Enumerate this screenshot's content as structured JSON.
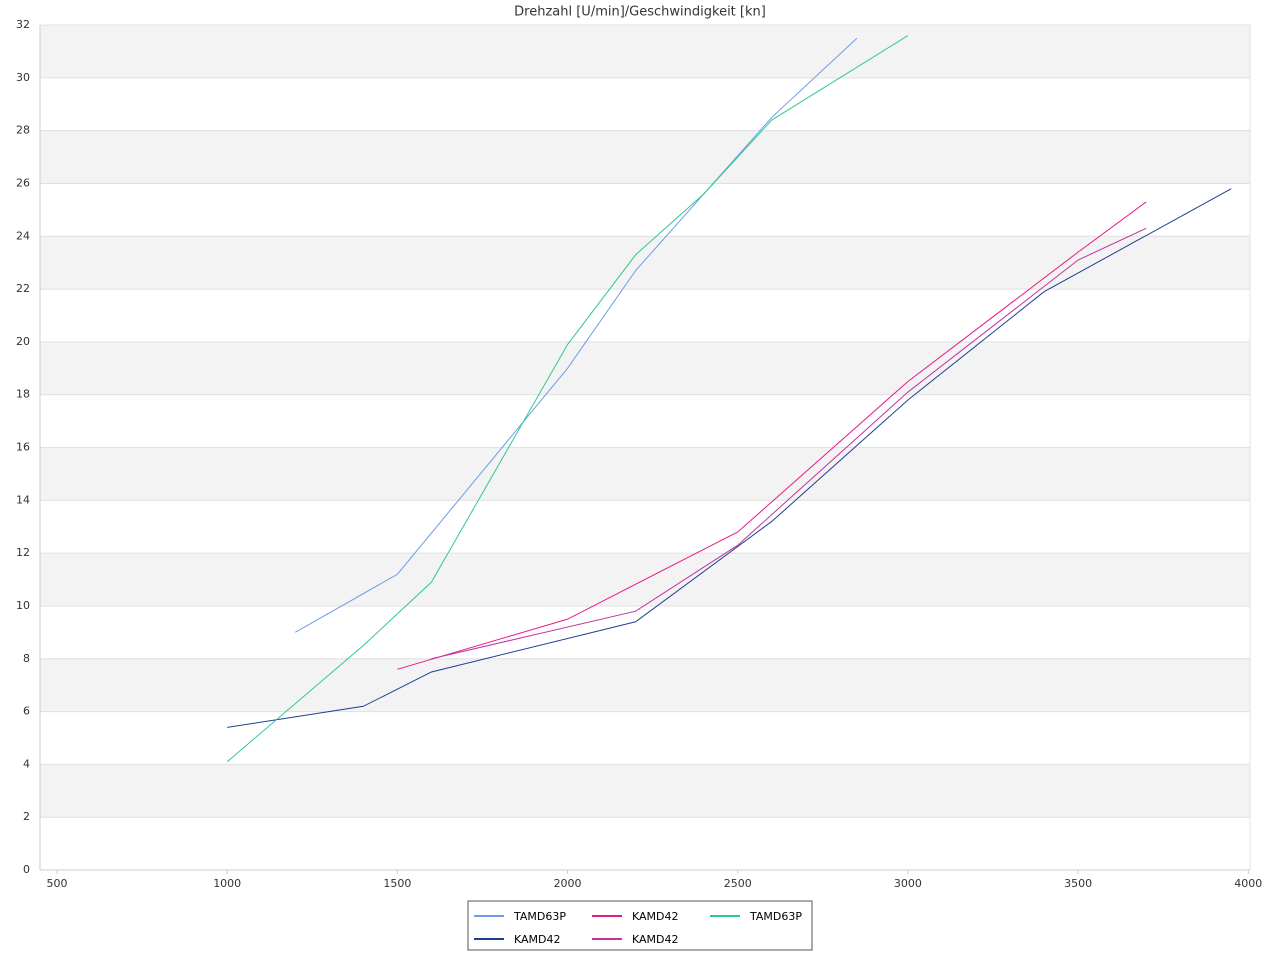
{
  "chart_data": {
    "type": "line",
    "title": "Drehzahl [U/min]/Geschwindigkeit [kn]",
    "series": [
      {
        "name": "TAMD63P",
        "color": "#6f9be8",
        "x": [
          1200,
          1500,
          2000,
          2200,
          2600,
          2850
        ],
        "values": [
          9,
          11.2,
          19,
          22.7,
          28.5,
          31.5
        ]
      },
      {
        "name": "KAMD42",
        "color": "#1f3f8f",
        "x": [
          1000,
          1400,
          1600,
          2200,
          2600,
          3000,
          3400,
          3950
        ],
        "values": [
          5.4,
          6.2,
          7.5,
          9.4,
          13.2,
          17.8,
          21.9,
          25.8
        ]
      },
      {
        "name": "KAMD42",
        "color": "#e8198b",
        "x": [
          1500,
          2000,
          2500,
          3000,
          3500,
          3700
        ],
        "values": [
          7.6,
          9.5,
          12.8,
          18.5,
          23.4,
          25.3
        ]
      },
      {
        "name": "KAMD42",
        "color": "#c0339e",
        "x": [
          1600,
          2200,
          2500,
          3000,
          3500,
          3700
        ],
        "values": [
          8.0,
          9.8,
          12.3,
          18.1,
          23.1,
          24.3
        ]
      },
      {
        "name": "TAMD63P",
        "color": "#2ec990",
        "x": [
          1000,
          1400,
          1600,
          2000,
          2200,
          2400,
          2600,
          3000
        ],
        "values": [
          4.1,
          8.5,
          10.9,
          19.9,
          23.3,
          25.6,
          28.4,
          31.6
        ]
      }
    ],
    "xlim": [
      450,
      4005
    ],
    "xticks": [
      500,
      1000,
      1500,
      2000,
      2500,
      3000,
      3500,
      4000
    ],
    "ylim": [
      0,
      32
    ],
    "yticks": [
      0,
      2,
      4,
      6,
      8,
      10,
      12,
      14,
      16,
      18,
      20,
      22,
      24,
      26,
      28,
      30,
      32
    ],
    "grid": true,
    "banded": true,
    "legend": "bottom"
  }
}
